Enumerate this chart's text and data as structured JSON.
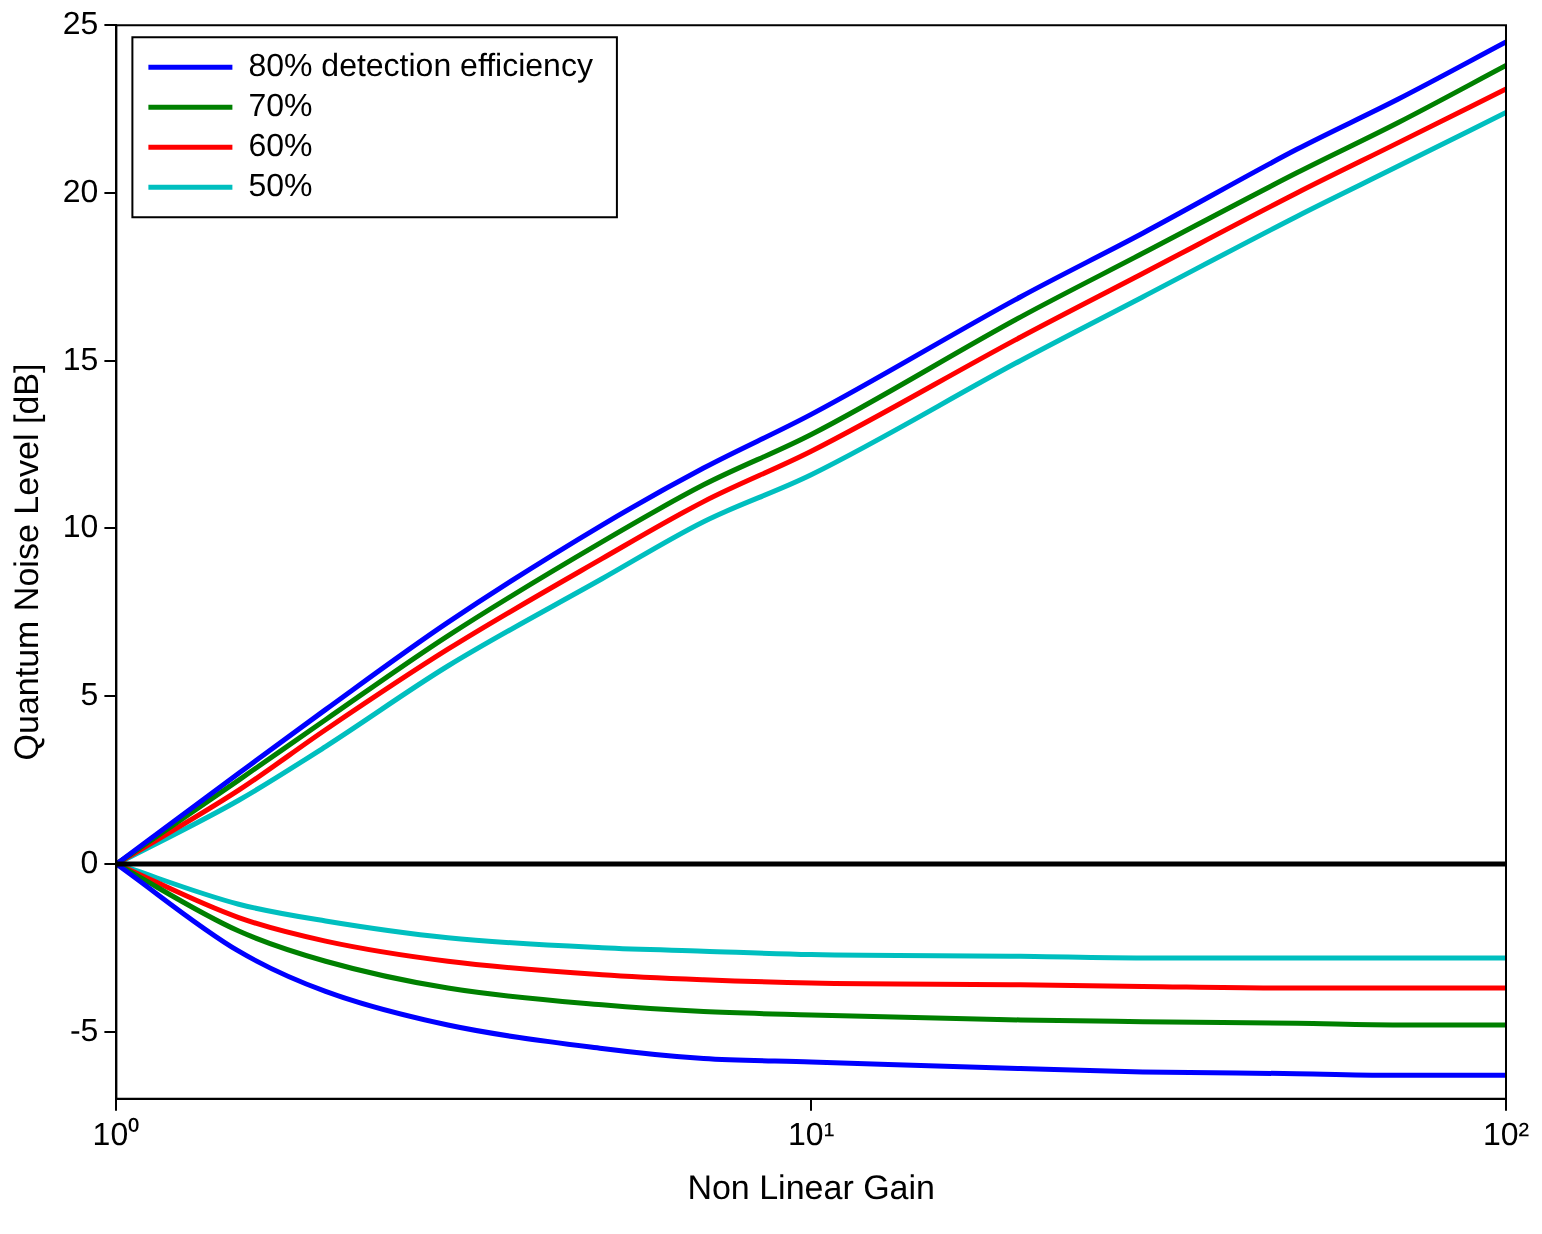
{
  "chart_data": {
    "type": "line",
    "xlabel": "Non Linear Gain",
    "ylabel": "Quantum Noise Level [dB]",
    "log": "x",
    "grid": false,
    "legend": "top left",
    "marker": "none",
    "line_style": "solid",
    "x": [
      1,
      1.5,
      2,
      3,
      5,
      7,
      10,
      20,
      30,
      50,
      70,
      100
    ],
    "xlim": [
      1,
      100
    ],
    "xticks": [
      {
        "value": 1,
        "label": "10⁰"
      },
      {
        "value": 10,
        "label": "10¹"
      },
      {
        "value": 100,
        "label": "10²"
      }
    ],
    "ylim": [
      -7,
      25
    ],
    "yticks": [
      -5,
      0,
      5,
      10,
      15,
      20,
      25
    ],
    "ref_lines": [
      {
        "axis": "y",
        "value": 0,
        "color": "#000000"
      }
    ],
    "series": [
      {
        "name": "80% detection efficiency",
        "color": "#0000ff",
        "values": [
          0,
          2.7,
          4.6,
          7.2,
          10.1,
          11.8,
          13.4,
          16.9,
          18.8,
          21.3,
          22.8,
          24.5
        ]
      },
      {
        "name": "70%",
        "color": "#008000",
        "values": [
          0,
          2.5,
          4.3,
          6.8,
          9.6,
          11.3,
          12.8,
          16.3,
          18.2,
          20.6,
          22.1,
          23.8
        ]
      },
      {
        "name": "60%",
        "color": "#ff0000",
        "values": [
          0,
          2.2,
          4.0,
          6.4,
          9.1,
          10.8,
          12.3,
          15.7,
          17.6,
          20.0,
          21.5,
          23.1
        ]
      },
      {
        "name": "50%",
        "color": "#00bfbf",
        "values": [
          0,
          1.9,
          3.5,
          5.9,
          8.5,
          10.2,
          11.6,
          15.0,
          16.9,
          19.3,
          20.8,
          22.4
        ]
      },
      {
        "color": "#0000ff",
        "values": [
          0,
          -2.6,
          -3.8,
          -4.8,
          -5.5,
          -5.8,
          -5.9,
          -6.1,
          -6.2,
          -6.25,
          -6.3,
          -6.3
        ]
      },
      {
        "color": "#008000",
        "values": [
          0,
          -2.0,
          -2.9,
          -3.7,
          -4.2,
          -4.4,
          -4.5,
          -4.65,
          -4.7,
          -4.75,
          -4.8,
          -4.8
        ]
      },
      {
        "color": "#ff0000",
        "values": [
          0,
          -1.6,
          -2.3,
          -2.9,
          -3.3,
          -3.45,
          -3.55,
          -3.6,
          -3.65,
          -3.7,
          -3.7,
          -3.7
        ]
      },
      {
        "color": "#00bfbf",
        "values": [
          0,
          -1.2,
          -1.7,
          -2.2,
          -2.5,
          -2.6,
          -2.7,
          -2.75,
          -2.8,
          -2.8,
          -2.8,
          -2.8
        ]
      }
    ]
  }
}
